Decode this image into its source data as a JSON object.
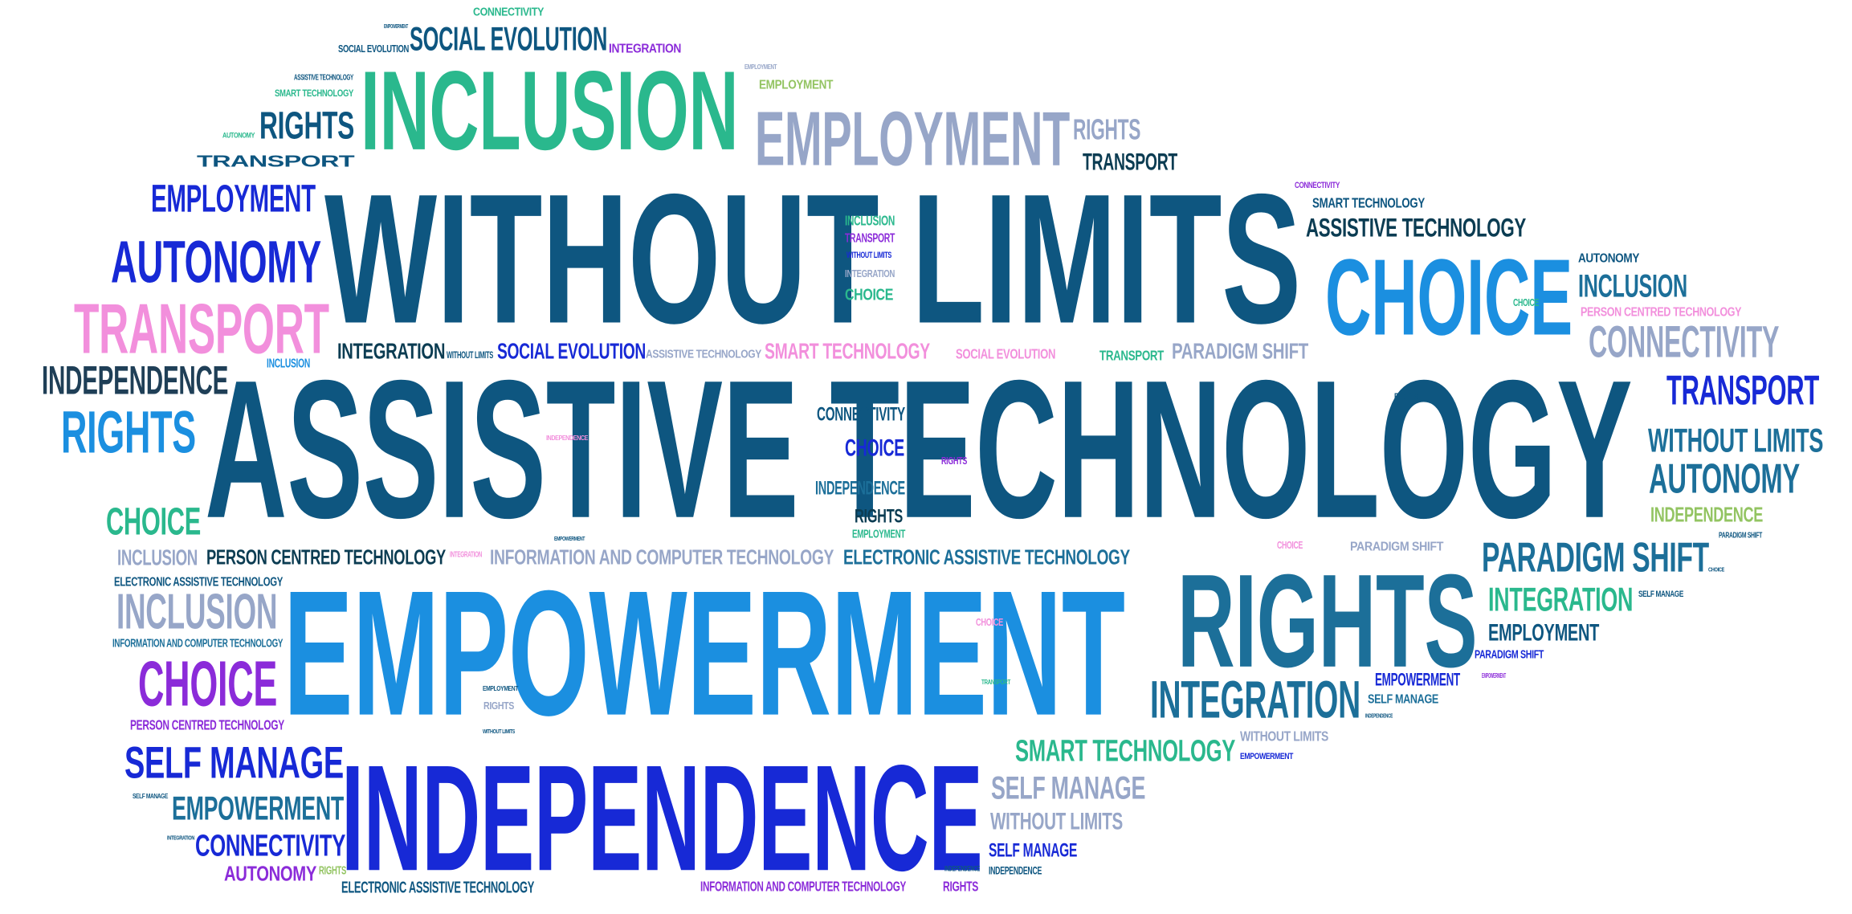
{
  "colors": {
    "navy": "#0e5680",
    "blue": "#1b8fe0",
    "deepblue": "#1729d6",
    "teal": "#2ab88d",
    "mediumteal": "#1c6f99",
    "lavender": "#97a6c8",
    "pink": "#f28fdc",
    "purple": "#8b2bd9",
    "lightgreen": "#93c462",
    "darkslate": "#1f3f57",
    "midnight": "#0b3c52"
  },
  "words": [
    {
      "text": "WITHOUT LIMITS",
      "color": "navy"
    },
    {
      "text": "ASSISTIVE TECHNOLOGY",
      "color": "navy"
    },
    {
      "text": "EMPOWERMENT",
      "color": "blue"
    },
    {
      "text": "INDEPENDENCE",
      "color": "deepblue"
    },
    {
      "text": "INCLUSION",
      "color": "teal"
    },
    {
      "text": "RIGHTS",
      "color": "mediumteal"
    },
    {
      "text": "EMPLOYMENT",
      "color": "lavender"
    },
    {
      "text": "CHOICE",
      "color": "blue"
    },
    {
      "text": "TRANSPORT",
      "color": "pink"
    },
    {
      "text": "AUTONOMY",
      "color": "deepblue"
    },
    {
      "text": "RIGHTS",
      "color": "blue"
    },
    {
      "text": "CHOICE",
      "color": "purple"
    },
    {
      "text": "INCLUSION",
      "color": "lavender"
    },
    {
      "text": "SELF MANAGE",
      "color": "deepblue"
    },
    {
      "text": "EMPLOYMENT",
      "color": "deepblue"
    },
    {
      "text": "RIGHTS",
      "color": "navy"
    },
    {
      "text": "SOCIAL EVOLUTION",
      "color": "navy"
    },
    {
      "text": "INTEGRATION",
      "color": "mediumteal"
    },
    {
      "text": "PARADIGM SHIFT",
      "color": "mediumteal"
    },
    {
      "text": "CONNECTIVITY",
      "color": "lavender"
    },
    {
      "text": "TRANSPORT",
      "color": "deepblue"
    },
    {
      "text": "WITHOUT LIMITS",
      "color": "mediumteal"
    },
    {
      "text": "AUTONOMY",
      "color": "mediumteal"
    },
    {
      "text": "INDEPENDENCE",
      "color": "darkslate"
    },
    {
      "text": "CHOICE",
      "color": "teal"
    },
    {
      "text": "EMPOWERMENT",
      "color": "mediumteal"
    },
    {
      "text": "CONNECTIVITY",
      "color": "deepblue"
    },
    {
      "text": "INTEGRATION",
      "color": "teal"
    },
    {
      "text": "SMART TECHNOLOGY",
      "color": "teal"
    },
    {
      "text": "SELF MANAGE",
      "color": "lavender"
    },
    {
      "text": "WITHOUT LIMITS",
      "color": "lavender"
    },
    {
      "text": "SELF MANAGE",
      "color": "deepblue"
    },
    {
      "text": "INCLUSION",
      "color": "mediumteal"
    },
    {
      "text": "ASSISTIVE TECHNOLOGY",
      "color": "midnight"
    },
    {
      "text": "EMPLOYMENT",
      "color": "navy"
    },
    {
      "text": "TRANSPORT",
      "color": "midnight"
    },
    {
      "text": "RIGHTS",
      "color": "lavender"
    },
    {
      "text": "INTEGRATION",
      "color": "midnight"
    },
    {
      "text": "SOCIAL EVOLUTION",
      "color": "deepblue"
    },
    {
      "text": "SMART TECHNOLOGY",
      "color": "pink"
    },
    {
      "text": "PARADIGM SHIFT",
      "color": "lavender"
    },
    {
      "text": "PERSON CENTRED TECHNOLOGY",
      "color": "midnight"
    },
    {
      "text": "INFORMATION AND COMPUTER TECHNOLOGY",
      "color": "lavender"
    },
    {
      "text": "ELECTRONIC ASSISTIVE TECHNOLOGY",
      "color": "mediumteal"
    },
    {
      "text": "INCLUSION",
      "color": "lavender"
    },
    {
      "text": "ELECTRONIC ASSISTIVE TECHNOLOGY",
      "color": "navy"
    },
    {
      "text": "INFORMATION AND COMPUTER TECHNOLOGY",
      "color": "mediumteal"
    },
    {
      "text": "PERSON CENTRED TECHNOLOGY",
      "color": "purple"
    },
    {
      "text": "AUTONOMY",
      "color": "purple"
    },
    {
      "text": "ELECTRONIC ASSISTIVE TECHNOLOGY",
      "color": "navy"
    },
    {
      "text": "INFORMATION AND COMPUTER TECHNOLOGY",
      "color": "purple"
    },
    {
      "text": "RIGHTS",
      "color": "purple"
    },
    {
      "text": "INDEPENDENCE",
      "color": "navy"
    },
    {
      "text": "CONNECTIVITY",
      "color": "navy"
    },
    {
      "text": "EMPOWERMENT",
      "color": "deepblue"
    },
    {
      "text": "CHOICE",
      "color": "deepblue"
    },
    {
      "text": "INDEPENDENCE",
      "color": "mediumteal"
    },
    {
      "text": "RIGHTS",
      "color": "midnight"
    },
    {
      "text": "EMPLOYMENT",
      "color": "teal"
    },
    {
      "text": "INCLUSION",
      "color": "teal"
    },
    {
      "text": "TRANSPORT",
      "color": "purple"
    },
    {
      "text": "WITHOUT LIMITS",
      "color": "deepblue"
    },
    {
      "text": "INTEGRATION",
      "color": "lavender"
    },
    {
      "text": "CHOICE",
      "color": "teal"
    },
    {
      "text": "ASSISTIVE TECHNOLOGY",
      "color": "lavender"
    },
    {
      "text": "SOCIAL EVOLUTION",
      "color": "pink"
    },
    {
      "text": "TRANSPORT",
      "color": "teal"
    },
    {
      "text": "INCLUSION",
      "color": "blue"
    },
    {
      "text": "WITHOUT LIMITS",
      "color": "navy"
    },
    {
      "text": "EMPOWERMENT",
      "color": "navy"
    },
    {
      "text": "CONNECTIVITY",
      "color": "teal"
    },
    {
      "text": "EMPLOYMENT",
      "color": "lightgreen"
    },
    {
      "text": "EMPLOYMENT",
      "color": "lavender"
    },
    {
      "text": "SOCIAL EVOLUTION",
      "color": "navy"
    },
    {
      "text": "INTEGRATION",
      "color": "purple"
    },
    {
      "text": "ASSISTIVE TECHNOLOGY",
      "color": "navy"
    },
    {
      "text": "SMART TECHNOLOGY",
      "color": "teal"
    },
    {
      "text": "AUTONOMY",
      "color": "teal"
    },
    {
      "text": "TRANSPORT",
      "color": "navy"
    },
    {
      "text": "CONNECTIVITY",
      "color": "purple"
    },
    {
      "text": "SMART TECHNOLOGY",
      "color": "navy"
    },
    {
      "text": "AUTONOMY",
      "color": "navy"
    },
    {
      "text": "PERSON CENTRED TECHNOLOGY",
      "color": "pink"
    },
    {
      "text": "CHOICE",
      "color": "teal"
    },
    {
      "text": "RIGHTS",
      "color": "navy"
    },
    {
      "text": "INDEPENDENCE",
      "color": "lightgreen"
    },
    {
      "text": "PARADIGM SHIFT",
      "color": "navy"
    },
    {
      "text": "SELF MANAGE",
      "color": "navy"
    },
    {
      "text": "PARADIGM SHIFT",
      "color": "deepblue"
    },
    {
      "text": "EMPOWERMENT",
      "color": "deepblue"
    },
    {
      "text": "SELF MANAGE",
      "color": "mediumteal"
    },
    {
      "text": "WITHOUT LIMITS",
      "color": "lavender"
    },
    {
      "text": "EMPOWERMENT",
      "color": "purple"
    },
    {
      "text": "CHOICE",
      "color": "pink"
    },
    {
      "text": "CHOICE",
      "color": "pink"
    },
    {
      "text": "PARADIGM SHIFT",
      "color": "lavender"
    },
    {
      "text": "SELF MANAGE",
      "color": "navy"
    },
    {
      "text": "INTEGRATION",
      "color": "navy"
    },
    {
      "text": "RIGHTS",
      "color": "lightgreen"
    },
    {
      "text": "RIGHTS",
      "color": "purple"
    },
    {
      "text": "INDEPENDENCE",
      "color": "navy"
    },
    {
      "text": "EMPLOYMENT",
      "color": "navy"
    },
    {
      "text": "RIGHTS",
      "color": "lavender"
    },
    {
      "text": "WITHOUT LIMITS",
      "color": "navy"
    },
    {
      "text": "EMPOWERMENT",
      "color": "navy"
    },
    {
      "text": "INDEPENDENCE",
      "color": "pink"
    },
    {
      "text": "INTEGRATION",
      "color": "pink"
    },
    {
      "text": "CHOICE",
      "color": "navy"
    },
    {
      "text": "TRANSPORT",
      "color": "teal"
    },
    {
      "text": "INDEPENDENCE",
      "color": "navy"
    }
  ]
}
